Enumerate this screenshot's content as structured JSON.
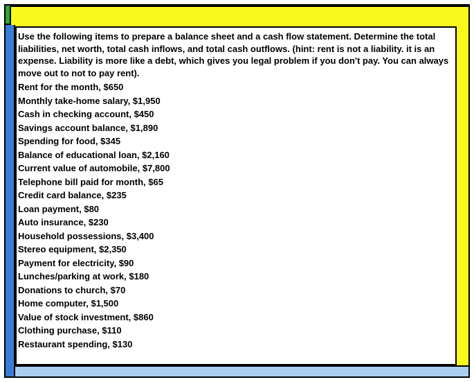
{
  "layout": {
    "outer_border_color": "#000000",
    "top_bar_color": "#2ea830",
    "yellow_frame_color": "#f9f91e",
    "left_strip_color": "#3a7dd6",
    "bottom_strip_color": "#a9cef0",
    "content_bg": "#ffffff",
    "font_family": "Verdana, Geneva, sans-serif",
    "font_size_pt": 10,
    "font_weight": "bold",
    "text_color": "#000000"
  },
  "intro": "Use the following items to prepare a balance sheet and a cash flow statement. Determine the total liabilities, net worth, total cash inflows, and total cash outflows. (hint: rent is not a liability. it is an expense. Liability is more like a debt, which gives you legal problem if you don't pay. You can always move out to not to pay rent).",
  "items": [
    "Rent for the month, $650",
    "Monthly take-home salary, $1,950",
    "Cash in checking account, $450",
    "Savings account balance, $1,890",
    "Spending for food, $345",
    "Balance of educational loan, $2,160",
    "Current value of automobile, $7,800",
    "Telephone bill paid for month, $65",
    "Credit card balance, $235",
    "Loan payment, $80",
    "Auto insurance, $230",
    "Household possessions, $3,400",
    "Stereo equipment, $2,350",
    "Payment for electricity, $90",
    "Lunches/parking at work, $180",
    "Donations to church, $70",
    "Home computer, $1,500",
    "Value of stock investment, $860",
    "Clothing purchase, $110",
    "Restaurant spending, $130"
  ]
}
